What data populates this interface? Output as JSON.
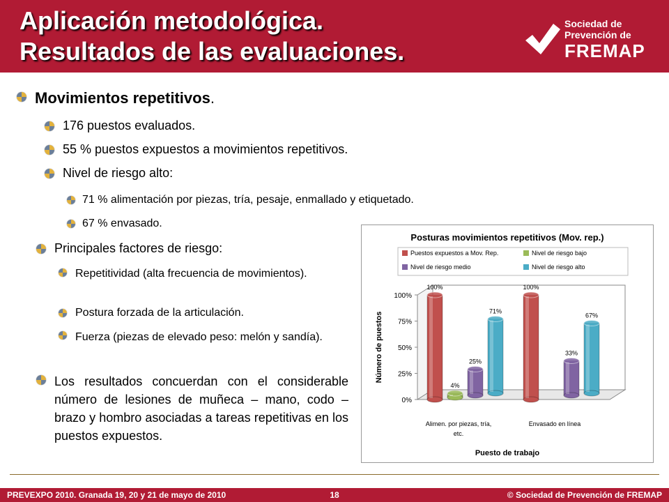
{
  "header": {
    "title_line1": "Aplicación metodológica.",
    "title_line2": "Resultados de las evaluaciones.",
    "logo_line1": "Sociedad de",
    "logo_line2": "Prevención de",
    "logo_line3": "FREMAP"
  },
  "content": {
    "heading": "Movimientos repetitivos",
    "heading_suffix": ".",
    "items": [
      "176 puestos evaluados.",
      "55 % puestos expuestos a movimientos repetitivos.",
      "Nivel de riesgo alto:"
    ],
    "subitems": [
      "71 % alimentación por piezas, tría, pesaje, enmallado y etiquetado.",
      "67 % envasado."
    ],
    "factors_heading": "Principales factores de riesgo:",
    "factors": [
      "Repetitividad (alta frecuencia de movimientos).",
      "Postura forzada de la articulación.",
      "Fuerza (piezas de elevado peso: melón y sandía)."
    ],
    "conclusion": "Los resultados concuerdan con el considerable número de lesiones de muñeca – mano, codo – brazo y hombro asociadas a tareas repetitivas en los puestos expuestos."
  },
  "chart_data": {
    "type": "bar",
    "title": "Posturas movimientos repetitivos (Mov. rep.)",
    "xlabel": "Puesto de trabajo",
    "ylabel": "Número de puestos",
    "categories": [
      "Alimen. por piezas, tría, etc.",
      "Envasado en línea"
    ],
    "series": [
      {
        "name": "Puestos expuestos a Mov. Rep.",
        "color": "#c0504d",
        "values": [
          100,
          100
        ]
      },
      {
        "name": "Nivel de riesgo bajo",
        "color": "#9bbb59",
        "values": [
          4,
          null
        ]
      },
      {
        "name": "Nivel de riesgo medio",
        "color": "#8064a2",
        "values": [
          25,
          33
        ]
      },
      {
        "name": "Nivel de riesgo alto",
        "color": "#4bacc6",
        "values": [
          71,
          67
        ]
      }
    ],
    "data_labels": [
      [
        "100%",
        "4%",
        "25%",
        "71%"
      ],
      [
        "100%",
        "",
        "33%",
        "67%"
      ]
    ],
    "ytick_labels": [
      "0%",
      "25%",
      "50%",
      "75%",
      "100%"
    ],
    "ylim": [
      0,
      100
    ],
    "legend_position": "top",
    "grid": false
  },
  "footer": {
    "left": "PREVEXPO 2010. Granada 19, 20 y 21 de mayo de 2010",
    "page": "18",
    "right": "© Sociedad de Prevención de FREMAP"
  },
  "colors": {
    "brand_red": "#b11b34"
  }
}
